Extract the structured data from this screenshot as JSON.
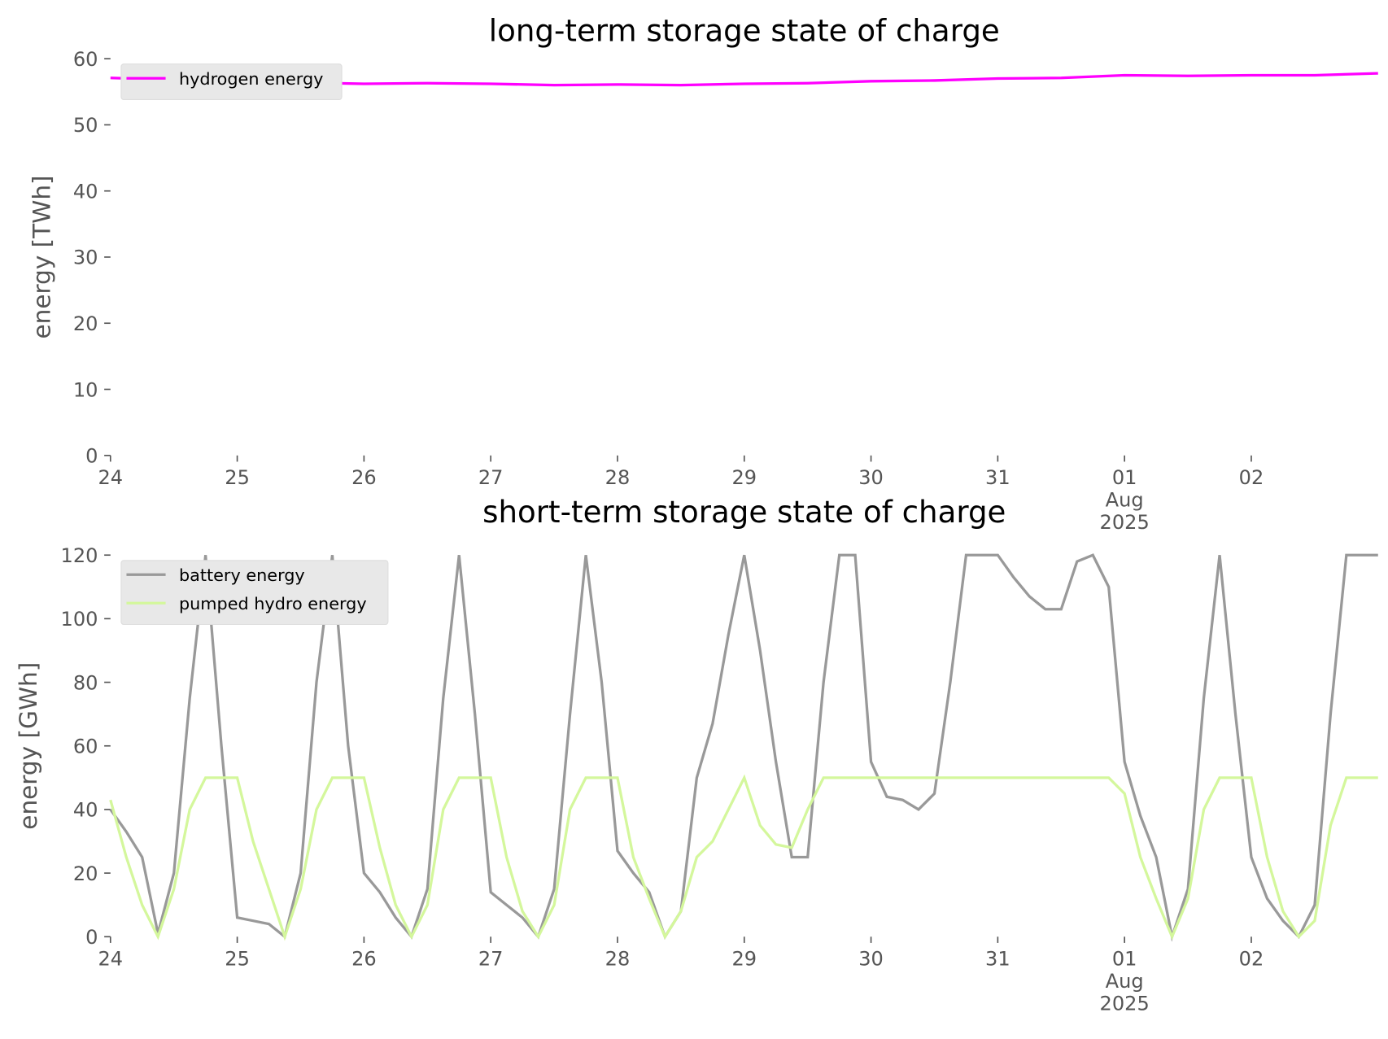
{
  "chart_data": [
    {
      "type": "line",
      "title": "long-term storage state of charge",
      "ylabel": "energy [TWh]",
      "x": [
        0,
        0.5,
        1,
        1.5,
        2,
        2.5,
        3,
        3.5,
        4,
        4.5,
        5,
        5.5,
        6,
        6.5,
        7,
        7.5,
        8,
        8.5,
        9,
        9.5,
        10
      ],
      "xlim": [
        0,
        10
      ],
      "xticks": [
        {
          "value": 0,
          "label": "24"
        },
        {
          "value": 1,
          "label": "25"
        },
        {
          "value": 2,
          "label": "26"
        },
        {
          "value": 3,
          "label": "27"
        },
        {
          "value": 4,
          "label": "28"
        },
        {
          "value": 5,
          "label": "29"
        },
        {
          "value": 6,
          "label": "30"
        },
        {
          "value": 7,
          "label": "31"
        },
        {
          "value": 8,
          "label": "01\nAug\n2025"
        },
        {
          "value": 9,
          "label": "02"
        }
      ],
      "ylim": [
        0,
        60
      ],
      "yticks": [
        0,
        10,
        20,
        30,
        40,
        50,
        60
      ],
      "legend": "upper left",
      "series": [
        {
          "name": "hydrogen energy",
          "color": "#ff00ff",
          "values": [
            57.1,
            56.8,
            56.6,
            56.4,
            56.2,
            56.3,
            56.2,
            56.0,
            56.1,
            56.0,
            56.2,
            56.3,
            56.6,
            56.7,
            57.0,
            57.1,
            57.5,
            57.4,
            57.5,
            57.5,
            57.8
          ]
        }
      ]
    },
    {
      "type": "line",
      "title": "short-term storage state of charge",
      "ylabel": "energy [GWh]",
      "x": [
        0,
        0.125,
        0.25,
        0.375,
        0.5,
        0.625,
        0.75,
        0.875,
        1,
        1.125,
        1.25,
        1.375,
        1.5,
        1.625,
        1.75,
        1.875,
        2,
        2.125,
        2.25,
        2.375,
        2.5,
        2.625,
        2.75,
        2.875,
        3,
        3.125,
        3.25,
        3.375,
        3.5,
        3.625,
        3.75,
        3.875,
        4,
        4.125,
        4.25,
        4.375,
        4.5,
        4.625,
        4.75,
        4.875,
        5,
        5.125,
        5.25,
        5.375,
        5.5,
        5.625,
        5.75,
        5.875,
        6,
        6.125,
        6.25,
        6.375,
        6.5,
        6.625,
        6.75,
        6.875,
        7,
        7.125,
        7.25,
        7.375,
        7.5,
        7.625,
        7.75,
        7.875,
        8,
        8.125,
        8.25,
        8.375,
        8.5,
        8.625,
        8.75,
        8.875,
        9,
        9.125,
        9.25,
        9.375,
        9.5,
        9.625,
        9.75,
        9.875,
        10
      ],
      "xlim": [
        0,
        10
      ],
      "xticks": [
        {
          "value": 0,
          "label": "24"
        },
        {
          "value": 1,
          "label": "25"
        },
        {
          "value": 2,
          "label": "26"
        },
        {
          "value": 3,
          "label": "27"
        },
        {
          "value": 4,
          "label": "28"
        },
        {
          "value": 5,
          "label": "29"
        },
        {
          "value": 6,
          "label": "30"
        },
        {
          "value": 7,
          "label": "31"
        },
        {
          "value": 8,
          "label": "01\nAug\n2025"
        },
        {
          "value": 9,
          "label": "02"
        }
      ],
      "ylim": [
        0,
        120
      ],
      "yticks": [
        0,
        20,
        40,
        60,
        80,
        100,
        120
      ],
      "legend": "upper left",
      "series": [
        {
          "name": "battery energy",
          "color": "#999999",
          "values": [
            40,
            33,
            25,
            1,
            20,
            75,
            120,
            60,
            6,
            5,
            4,
            0,
            20,
            80,
            120,
            60,
            20,
            14,
            6,
            0,
            15,
            75,
            120,
            70,
            14,
            10,
            6,
            0,
            15,
            70,
            120,
            80,
            27,
            20,
            14,
            0,
            8,
            50,
            67,
            95,
            120,
            90,
            55,
            25,
            25,
            80,
            120,
            120,
            55,
            44,
            43,
            40,
            45,
            80,
            120,
            120,
            120,
            113,
            107,
            103,
            103,
            118,
            120,
            110,
            55,
            38,
            25,
            0,
            15,
            75,
            120,
            70,
            25,
            12,
            5,
            0,
            10,
            70,
            120,
            120,
            120
          ]
        },
        {
          "name": "pumped hydro energy",
          "color": "#d4f79c",
          "values": [
            43,
            25,
            10,
            0,
            15,
            40,
            50,
            50,
            50,
            30,
            15,
            0,
            15,
            40,
            50,
            50,
            50,
            28,
            10,
            0,
            10,
            40,
            50,
            50,
            50,
            25,
            8,
            0,
            10,
            40,
            50,
            50,
            50,
            25,
            12,
            0,
            8,
            25,
            30,
            40,
            50,
            35,
            29,
            28,
            40,
            50,
            50,
            50,
            50,
            50,
            50,
            50,
            50,
            50,
            50,
            50,
            50,
            50,
            50,
            50,
            50,
            50,
            50,
            50,
            45,
            25,
            12,
            0,
            12,
            40,
            50,
            50,
            50,
            25,
            8,
            0,
            5,
            35,
            50,
            50,
            50
          ]
        }
      ]
    }
  ]
}
